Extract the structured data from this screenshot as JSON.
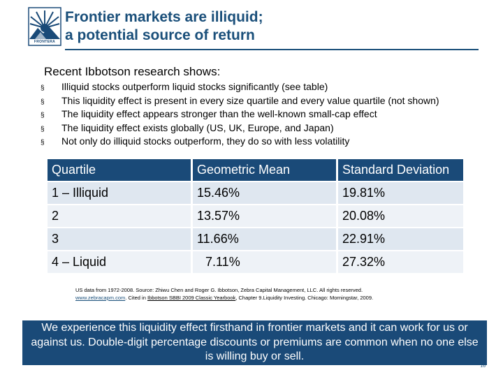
{
  "logo": {
    "text": "FRONTERA"
  },
  "title": {
    "line1": "Frontier markets are illiquid;",
    "line2": "a potential source of return"
  },
  "intro": "Recent Ibbotson research shows:",
  "bullet_symbol": "§",
  "bullets": [
    "Illiquid stocks outperform liquid stocks significantly (see table)",
    "This liquidity effect is present in every size quartile and every value quartile (not shown)",
    "The liquidity effect appears stronger than the well-known small-cap effect",
    "The liquidity effect exists globally (US, UK, Europe, and Japan)",
    "Not only do illiquid stocks outperform, they do so with less volatility"
  ],
  "table": {
    "headers": [
      "Quartile",
      "Geometric Mean",
      "Standard Deviation"
    ],
    "rows": [
      [
        "1 – Illiquid",
        "15.46%",
        "19.81%"
      ],
      [
        "2",
        "13.57%",
        "20.08%"
      ],
      [
        "3",
        "11.66%",
        "22.91%"
      ],
      [
        "4 – Liquid",
        "7.11%",
        "27.32%"
      ]
    ]
  },
  "source": {
    "part1": "US data from 1972-2008.  Source: Zhiwu Chen and Roger G. Ibbotson, Zebra Capital Management, LLC.  All rights reserved.  ",
    "link": "www.zebracapm.com",
    "part2": ".  Cited in ",
    "book": "Ibbotson SBBI 2009 Classic Yearbook",
    "part3": ", Chapter 9.Liquidity Investing.  Chicago: Morningstar, 2009."
  },
  "banner": "We experience this liquidity effect firsthand in frontier markets and it can work for us or against us.  Double-digit percentage discounts or premiums are common when no one else is willing buy or sell.",
  "page_number": "16",
  "colors": {
    "brand_blue": "#1a4a78",
    "row_light": "#dfe7f0",
    "row_lighter": "#eef2f7"
  }
}
